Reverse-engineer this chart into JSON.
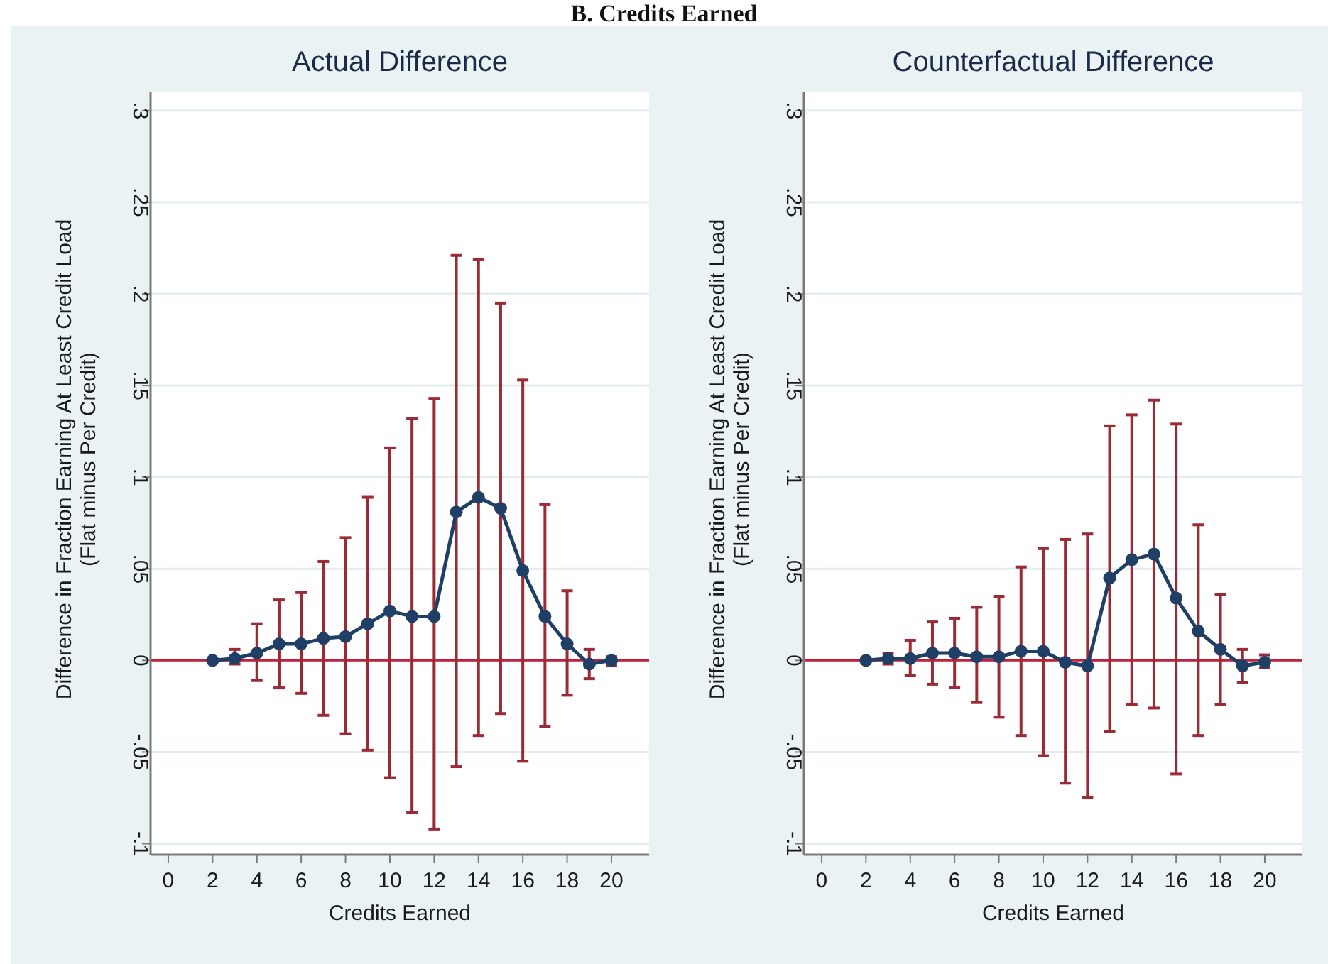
{
  "chart_data": [
    {
      "type": "line",
      "title": "Actual Difference",
      "annotations": [
        "B. Credits Earned"
      ],
      "xlabel": "Credits Earned",
      "ylabel": "Difference in Fraction Earning At Least Credit Load\n(Flat minus Per Credit)",
      "x": [
        2,
        3,
        4,
        5,
        6,
        7,
        8,
        9,
        10,
        11,
        12,
        13,
        14,
        15,
        16,
        17,
        18,
        19,
        20
      ],
      "series": [
        {
          "color": "#1f3f66",
          "values": [
            0,
            0.001,
            0.004,
            0.009,
            0.009,
            0.012,
            0.013,
            0.02,
            0.027,
            0.024,
            0.024,
            0.081,
            0.089,
            0.083,
            0.049,
            0.024,
            0.009,
            -0.002,
            0
          ],
          "errors": [
            null,
            [
              -0.002,
              0.006
            ],
            [
              -0.011,
              0.02
            ],
            [
              -0.015,
              0.033
            ],
            [
              -0.018,
              0.037
            ],
            [
              -0.03,
              0.054
            ],
            [
              -0.04,
              0.067
            ],
            [
              -0.049,
              0.089
            ],
            [
              -0.064,
              0.116
            ],
            [
              -0.083,
              0.132
            ],
            [
              -0.092,
              0.143
            ],
            [
              -0.058,
              0.221
            ],
            [
              -0.041,
              0.219
            ],
            [
              -0.029,
              0.195
            ],
            [
              -0.055,
              0.153
            ],
            [
              -0.036,
              0.085
            ],
            [
              -0.019,
              0.038
            ],
            [
              -0.01,
              0.006
            ],
            [
              -0.003,
              0.002
            ]
          ]
        }
      ],
      "marker": "circle",
      "grid": "y",
      "xlim": [
        -0.8,
        21.7
      ],
      "xticks": [
        0,
        2,
        4,
        6,
        8,
        10,
        12,
        14,
        16,
        18,
        20
      ],
      "ylim": [
        -0.106,
        0.31
      ],
      "yticks": [
        {
          "value": -0.1,
          "label": "-.1"
        },
        {
          "value": -0.05,
          "label": "-.05"
        },
        0,
        {
          "value": 0.05,
          "label": ".05"
        },
        {
          "value": 0.1,
          "label": ".1"
        },
        {
          "value": 0.15,
          "label": ".15"
        },
        {
          "value": 0.2,
          "label": ".2"
        },
        {
          "value": 0.25,
          "label": ".25"
        },
        {
          "value": 0.3,
          "label": ".3"
        }
      ],
      "ref_lines": [
        {
          "axis": "y",
          "value": 0,
          "color": "#c0203a"
        }
      ]
    },
    {
      "type": "line",
      "title": "Counterfactual Difference",
      "xlabel": "Credits Earned",
      "ylabel": "Difference in Fraction Earning At Least Credit Load\n(Flat minus Per Credit)",
      "x": [
        2,
        3,
        4,
        5,
        6,
        7,
        8,
        9,
        10,
        11,
        12,
        13,
        14,
        15,
        16,
        17,
        18,
        19,
        20
      ],
      "series": [
        {
          "color": "#1f3f66",
          "values": [
            0,
            0.001,
            0.001,
            0.004,
            0.004,
            0.002,
            0.002,
            0.005,
            0.005,
            -0.001,
            -0.003,
            0.045,
            0.055,
            0.058,
            0.034,
            0.016,
            0.006,
            -0.003,
            -0.001
          ],
          "errors": [
            null,
            [
              -0.002,
              0.004
            ],
            [
              -0.008,
              0.011
            ],
            [
              -0.013,
              0.021
            ],
            [
              -0.015,
              0.023
            ],
            [
              -0.023,
              0.029
            ],
            [
              -0.031,
              0.035
            ],
            [
              -0.041,
              0.051
            ],
            [
              -0.052,
              0.061
            ],
            [
              -0.067,
              0.066
            ],
            [
              -0.075,
              0.069
            ],
            [
              -0.039,
              0.128
            ],
            [
              -0.024,
              0.134
            ],
            [
              -0.026,
              0.142
            ],
            [
              -0.062,
              0.129
            ],
            [
              -0.041,
              0.074
            ],
            [
              -0.024,
              0.036
            ],
            [
              -0.012,
              0.006
            ],
            [
              -0.004,
              0.003
            ]
          ]
        }
      ],
      "marker": "circle",
      "grid": "y",
      "xlim": [
        -0.8,
        21.7
      ],
      "xticks": [
        0,
        2,
        4,
        6,
        8,
        10,
        12,
        14,
        16,
        18,
        20
      ],
      "ylim": [
        -0.106,
        0.31
      ],
      "yticks": [
        {
          "value": -0.1,
          "label": "-.1"
        },
        {
          "value": -0.05,
          "label": "-.05"
        },
        0,
        {
          "value": 0.05,
          "label": ".05"
        },
        {
          "value": 0.1,
          "label": ".1"
        },
        {
          "value": 0.15,
          "label": ".15"
        },
        {
          "value": 0.2,
          "label": ".2"
        },
        {
          "value": 0.25,
          "label": ".25"
        },
        {
          "value": 0.3,
          "label": ".3"
        }
      ],
      "ref_lines": [
        {
          "axis": "y",
          "value": 0,
          "color": "#c0203a"
        }
      ]
    }
  ]
}
